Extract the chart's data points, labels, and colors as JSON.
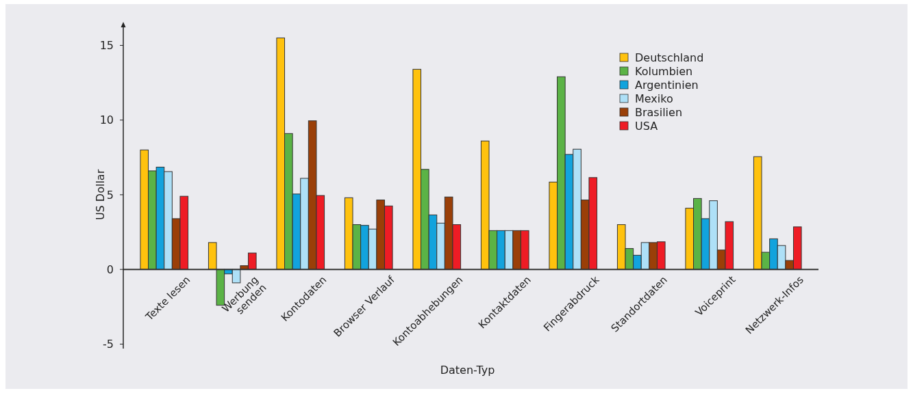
{
  "chart_data": {
    "type": "bar",
    "xlabel": "Daten-Typ",
    "ylabel": "US Dollar",
    "categories": [
      "Texte lesen",
      "Werbung\nsenden",
      "Kontodaten",
      "Browser Verlauf",
      "Kontoabhebungen",
      "Kontaktdaten",
      "Fingerabdruck",
      "Standortdaten",
      "Voiceprint",
      "Netzwerk-Infos"
    ],
    "series": [
      {
        "name": "Deutschland",
        "color": "#ffc20e",
        "values": [
          8.0,
          1.8,
          15.5,
          4.8,
          13.4,
          8.6,
          5.85,
          3.0,
          4.1,
          7.55
        ]
      },
      {
        "name": "Kolumbien",
        "color": "#5bb346",
        "values": [
          6.6,
          -2.4,
          9.1,
          3.0,
          6.7,
          2.6,
          12.9,
          1.4,
          4.75,
          1.15
        ]
      },
      {
        "name": "Argentinien",
        "color": "#12a3dd",
        "values": [
          6.85,
          -0.3,
          5.05,
          2.95,
          3.65,
          2.6,
          7.7,
          0.95,
          3.4,
          2.05
        ]
      },
      {
        "name": "Mexiko",
        "color": "#aee0f7",
        "values": [
          6.55,
          -0.9,
          6.1,
          2.7,
          3.1,
          2.6,
          8.05,
          1.8,
          4.6,
          1.6
        ]
      },
      {
        "name": "Brasilien",
        "color": "#9a3f08",
        "values": [
          3.4,
          0.25,
          9.95,
          4.65,
          4.85,
          2.6,
          4.65,
          1.8,
          1.3,
          0.6
        ]
      },
      {
        "name": "USA",
        "color": "#ee1c25",
        "values": [
          4.9,
          1.1,
          4.95,
          4.25,
          3.0,
          2.6,
          6.15,
          1.85,
          3.2,
          2.85
        ]
      }
    ],
    "ylim": [
      -5.3,
      16.3
    ],
    "yticks": [
      -5,
      0,
      5,
      10,
      15
    ],
    "grid": false,
    "legend": "top right"
  }
}
